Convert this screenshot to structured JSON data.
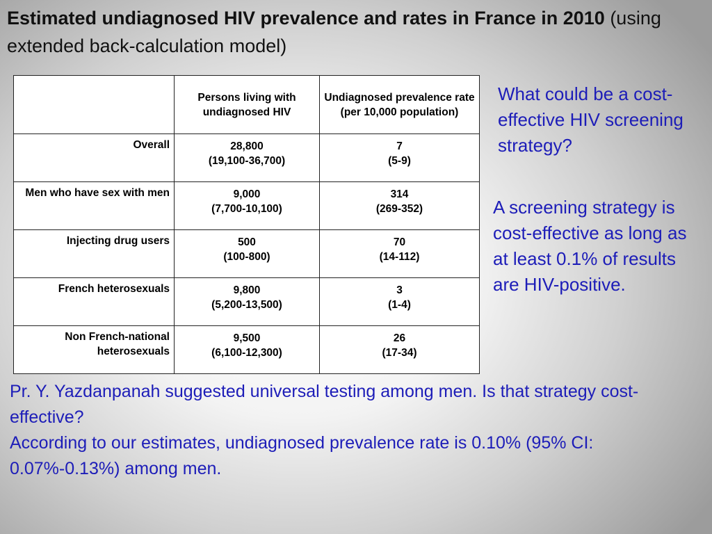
{
  "title": {
    "bold": "Estimated undiagnosed HIV prevalence and rates in France in 2010",
    "normal": "(using extended back-calculation model)"
  },
  "table": {
    "headers": {
      "persons": "Persons living with undiagnosed HIV",
      "rate": "Undiagnosed prevalence rate (per 10,000 population)"
    },
    "rows": [
      {
        "label": "Overall",
        "persons": "28,800",
        "persons_ci": "(19,100-36,700)",
        "rate": "7",
        "rate_ci": "(5-9)"
      },
      {
        "label": "Men who have sex with men",
        "persons": "9,000",
        "persons_ci": "(7,700-10,100)",
        "rate": "314",
        "rate_ci": "(269-352)"
      },
      {
        "label": "Injecting drug users",
        "persons": "500",
        "persons_ci": "(100-800)",
        "rate": "70",
        "rate_ci": "(14-112)"
      },
      {
        "label": "French heterosexuals",
        "persons": "9,800",
        "persons_ci": "(5,200-13,500)",
        "rate": "3",
        "rate_ci": "(1-4)"
      },
      {
        "label": "Non French-national heterosexuals",
        "persons": "9,500",
        "persons_ci": "(6,100-12,300)",
        "rate": "26",
        "rate_ci": "(17-34)"
      }
    ]
  },
  "side": {
    "question": "What could be a cost-effective HIV screening strategy?",
    "answer": "A screening strategy is cost-effective as long as at least 0.1% of results are HIV-positive."
  },
  "bottom": {
    "line1": "Pr. Y. Yazdanpanah suggested universal testing among men. Is that strategy cost-effective?",
    "line2": "According to our estimates, undiagnosed prevalence rate is 0.10% (95% CI: 0.07%-0.13%) among men."
  }
}
